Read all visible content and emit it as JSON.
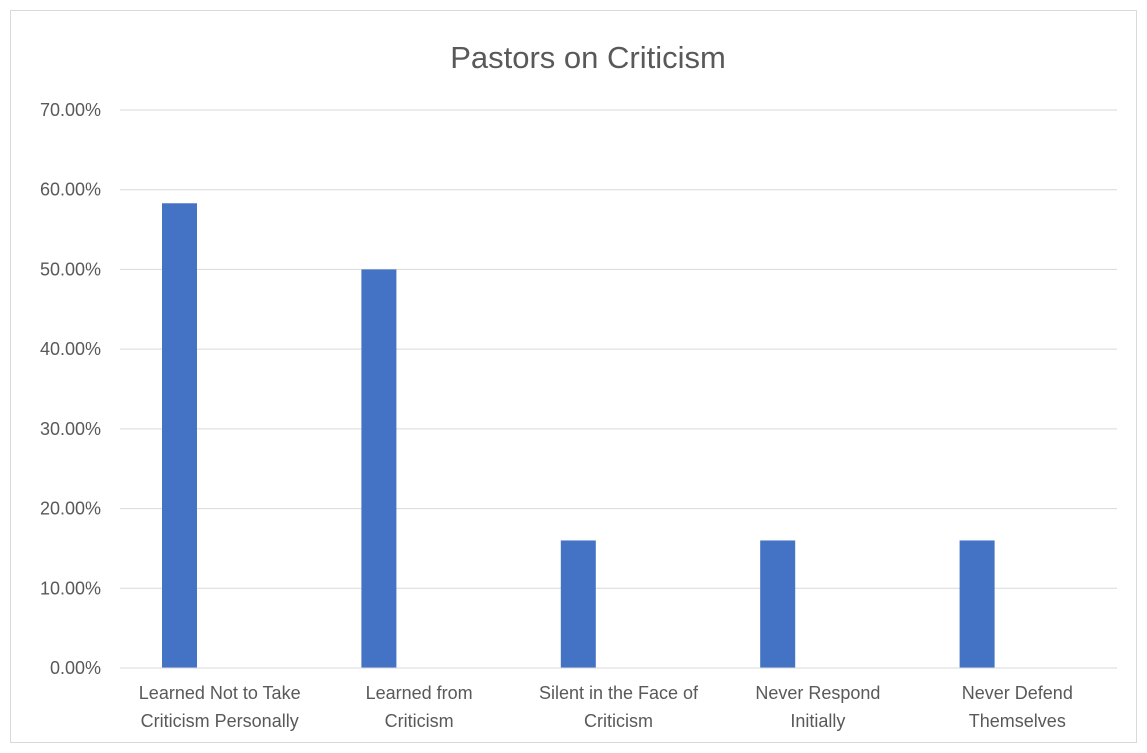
{
  "chart_data": {
    "type": "bar",
    "title": "Pastors on Criticism",
    "xlabel": "",
    "ylabel": "",
    "categories": [
      [
        "Learned Not to Take",
        "Criticism Personally"
      ],
      [
        "Learned from",
        "Criticism"
      ],
      [
        "Silent in the Face of",
        "Criticism"
      ],
      [
        "Never Respond",
        "Initially"
      ],
      [
        "Never Defend",
        "Themselves"
      ]
    ],
    "values": [
      58.3,
      50.0,
      16.0,
      16.0,
      16.0
    ],
    "ylim": [
      0,
      70
    ],
    "yticks": [
      "0.00%",
      "10.00%",
      "20.00%",
      "30.00%",
      "40.00%",
      "50.00%",
      "60.00%",
      "70.00%"
    ],
    "grid": true,
    "legend": "none",
    "bar_color": "#4472c4",
    "grid_color": "#d9d9d9"
  }
}
